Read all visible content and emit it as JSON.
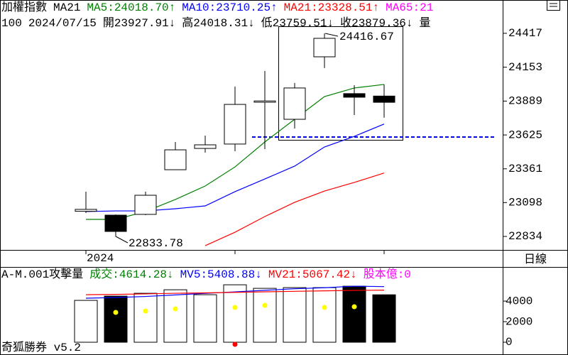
{
  "header": {
    "line1": [
      {
        "text": "加權指數",
        "color": "#000000"
      },
      {
        "text": "MA21",
        "color": "#000000"
      },
      {
        "text": "MA5:24018.70↑",
        "color": "#008000"
      },
      {
        "text": "MA10:23710.25↑",
        "color": "#0000ff"
      },
      {
        "text": "MA21:23328.51↑",
        "color": "#ff0000"
      },
      {
        "text": "MA65:21",
        "color": "#ff00ff"
      }
    ],
    "line2": [
      {
        "text": "100",
        "color": "#000000"
      },
      {
        "text": "2024/07/15",
        "color": "#000000"
      },
      {
        "text": "開23927.91↓",
        "color": "#000000"
      },
      {
        "text": "高24018.31↓",
        "color": "#000000"
      },
      {
        "text": "低23759.51↓",
        "color": "#000000"
      },
      {
        "text": "收23879.36↓",
        "color": "#000000"
      },
      {
        "text": "量",
        "color": "#000000"
      }
    ],
    "volume_line": [
      {
        "text": "A-M.001攻擊量",
        "color": "#000000"
      },
      {
        "text": "成交:4614.28↓",
        "color": "#008000"
      },
      {
        "text": "MV5:5408.88↓",
        "color": "#0000ff"
      },
      {
        "text": "MV21:5067.42↓",
        "color": "#ff0000"
      },
      {
        "text": "股本億:0",
        "color": "#ff00ff"
      }
    ],
    "period": "日線",
    "footer": "奇狐勝券 v5.2"
  },
  "chart_data": [
    {
      "type": "candlestick",
      "categories": [
        "2024",
        null,
        null,
        null,
        null,
        null,
        null,
        null,
        null,
        null,
        null
      ],
      "open": [
        23030,
        23000,
        23006,
        23354,
        23520,
        23554,
        23880,
        23747,
        24234,
        23947,
        23927.91
      ],
      "high": [
        23183,
        23005,
        23183,
        23570,
        23620,
        24002,
        24124,
        24030,
        24416.67,
        24013,
        24018.31
      ],
      "low": [
        23017,
        22833.78,
        23000,
        23354,
        23487,
        23498,
        23515,
        23675,
        24146,
        23780,
        23759.51
      ],
      "close": [
        23045,
        22873,
        23155,
        23509,
        23548,
        23863,
        23890,
        23991,
        24378,
        23919,
        23879.36
      ],
      "ylim": [
        22729,
        24566
      ],
      "yticks": [
        24417,
        24153,
        23889,
        23625,
        23361,
        23098,
        22834
      ],
      "series": [
        {
          "name": "MA5",
          "color": "#008000",
          "values": [
            22967,
            22967,
            23028,
            23122,
            23227,
            23376,
            23570,
            23747,
            23924,
            23991,
            24018.7
          ]
        },
        {
          "name": "MA10",
          "color": "#0000ff",
          "values": [
            23028,
            23033,
            23033,
            23050,
            23072,
            23183,
            23282,
            23382,
            23531,
            23614,
            23710.25
          ]
        },
        {
          "name": "MA21",
          "color": "#ff0000",
          "values": [
            null,
            null,
            null,
            null,
            22762,
            22867,
            22989,
            23100,
            23188,
            23255,
            23328.51
          ]
        }
      ],
      "reference_line": 23609,
      "reference_color": "#0000ff",
      "up_color": "#ffffff",
      "down_color": "#000000"
    },
    {
      "type": "bar",
      "values": [
        4069,
        4483,
        4759,
        5103,
        4621,
        5586,
        5241,
        5310,
        5310,
        5448,
        4614.28
      ],
      "ylim": [
        -1000,
        5800
      ],
      "yticks": [
        4000,
        2000,
        0
      ],
      "series": [
        {
          "name": "MV5",
          "color": "#0000ff",
          "values": [
            4280,
            4350,
            4450,
            4600,
            4750,
            4900,
            5050,
            5200,
            5300,
            5450,
            5408.88
          ]
        },
        {
          "name": "MV21",
          "color": "#ff0000",
          "values": [
            4620,
            4650,
            4700,
            4760,
            4800,
            4850,
            4900,
            4950,
            5000,
            5040,
            5067.42
          ]
        }
      ],
      "markers": [
        {
          "color": "#ffff00",
          "values": [
            null,
            2898,
            3036,
            3243,
            null,
            3381,
            3588,
            null,
            3381,
            3450,
            null
          ]
        },
        {
          "color": "#ff0000",
          "values": [
            null,
            null,
            null,
            null,
            null,
            -207,
            null,
            null,
            null,
            null,
            null
          ]
        }
      ]
    }
  ]
}
